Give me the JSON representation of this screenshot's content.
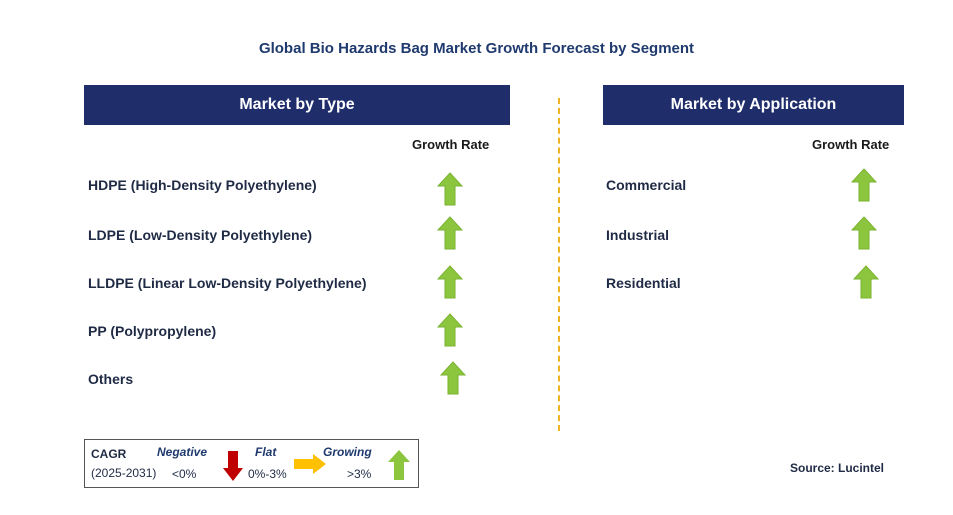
{
  "title": "Global Bio Hazards Bag Market Growth Forecast by Segment",
  "left_panel": {
    "header": "Market by Type",
    "growth_label": "Growth Rate",
    "items": [
      {
        "label": "HDPE (High-Density Polyethylene)",
        "trend": "growing"
      },
      {
        "label": "LDPE (Low-Density Polyethylene)",
        "trend": "growing"
      },
      {
        "label": "LLDPE (Linear Low-Density Polyethylene)",
        "trend": "growing"
      },
      {
        "label": "PP (Polypropylene)",
        "trend": "growing"
      },
      {
        "label": "Others",
        "trend": "growing"
      }
    ]
  },
  "right_panel": {
    "header": "Market by Application",
    "growth_label": "Growth Rate",
    "items": [
      {
        "label": "Commercial",
        "trend": "growing"
      },
      {
        "label": "Industrial",
        "trend": "growing"
      },
      {
        "label": "Residential",
        "trend": "growing"
      }
    ]
  },
  "legend": {
    "cagr": "CAGR",
    "period": "(2025-2031)",
    "negative_label": "Negative",
    "negative_value": "<0%",
    "flat_label": "Flat",
    "flat_value": "0%-3%",
    "growing_label": "Growing",
    "growing_value": ">3%"
  },
  "source": "Source: Lucintel",
  "colors": {
    "header_bg": "#1f2d6b",
    "growing": "#8cc63f",
    "negative": "#c00000",
    "flat": "#ffc000",
    "divider": "#f0b323"
  }
}
